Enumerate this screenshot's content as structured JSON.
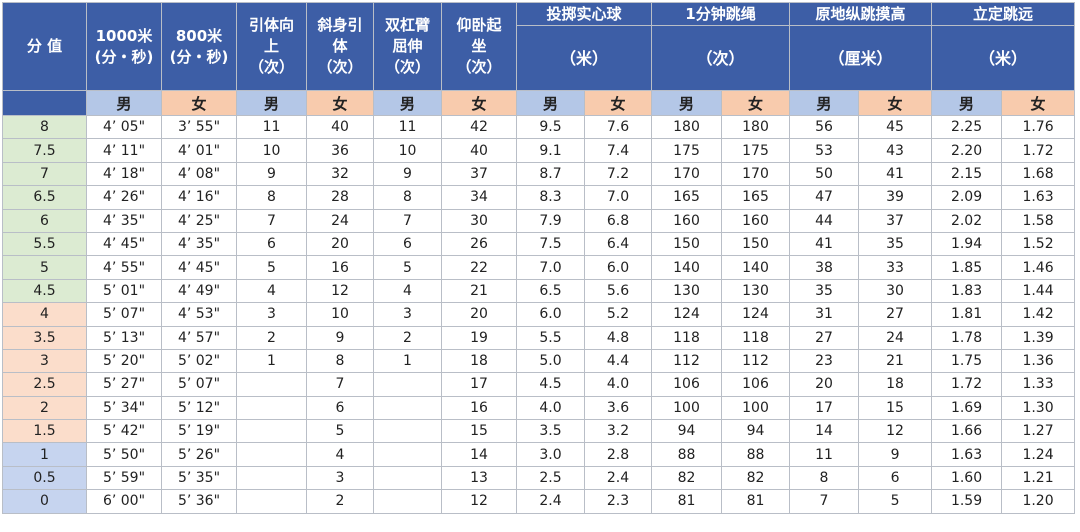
{
  "header": {
    "score": "分 值",
    "columns": [
      {
        "lines": [
          "1000米",
          "(分・秒)"
        ]
      },
      {
        "lines": [
          "800米",
          "(分・秒)"
        ]
      },
      {
        "lines": [
          "引体向",
          "上",
          "（次）"
        ]
      },
      {
        "lines": [
          "斜身引",
          "体",
          "（次）"
        ]
      },
      {
        "lines": [
          "双杠臂",
          "屈伸",
          "（次）"
        ]
      },
      {
        "lines": [
          "仰卧起",
          "坐",
          "（次）"
        ]
      }
    ],
    "groups": [
      {
        "title": "投掷实心球",
        "unit": "（米）"
      },
      {
        "title": "1分钟跳绳",
        "unit": "（次）"
      },
      {
        "title": "原地纵跳摸高",
        "unit": "（厘米）"
      },
      {
        "title": "立定跳远",
        "unit": "（米）"
      }
    ],
    "genders": [
      "男",
      "女",
      "男",
      "女",
      "男",
      "女",
      "男",
      "女",
      "男",
      "女",
      "男",
      "女",
      "男",
      "女"
    ]
  },
  "table": {
    "rows": [
      [
        "8",
        "4’ 05\"",
        "3’ 55\"",
        "11",
        "40",
        "11",
        "42",
        "9.5",
        "7.6",
        "180",
        "180",
        "56",
        "45",
        "2.25",
        "1.76"
      ],
      [
        "7.5",
        "4’ 11\"",
        "4’ 01\"",
        "10",
        "36",
        "10",
        "40",
        "9.1",
        "7.4",
        "175",
        "175",
        "53",
        "43",
        "2.20",
        "1.72"
      ],
      [
        "7",
        "4’ 18\"",
        "4’ 08\"",
        "9",
        "32",
        "9",
        "37",
        "8.7",
        "7.2",
        "170",
        "170",
        "50",
        "41",
        "2.15",
        "1.68"
      ],
      [
        "6.5",
        "4’ 26\"",
        "4’ 16\"",
        "8",
        "28",
        "8",
        "34",
        "8.3",
        "7.0",
        "165",
        "165",
        "47",
        "39",
        "2.09",
        "1.63"
      ],
      [
        "6",
        "4’ 35\"",
        "4’ 25\"",
        "7",
        "24",
        "7",
        "30",
        "7.9",
        "6.8",
        "160",
        "160",
        "44",
        "37",
        "2.02",
        "1.58"
      ],
      [
        "5.5",
        "4’ 45\"",
        "4’ 35\"",
        "6",
        "20",
        "6",
        "26",
        "7.5",
        "6.4",
        "150",
        "150",
        "41",
        "35",
        "1.94",
        "1.52"
      ],
      [
        "5",
        "4’ 55\"",
        "4’ 45\"",
        "5",
        "16",
        "5",
        "22",
        "7.0",
        "6.0",
        "140",
        "140",
        "38",
        "33",
        "1.85",
        "1.46"
      ],
      [
        "4.5",
        "5’ 01\"",
        "4’ 49\"",
        "4",
        "12",
        "4",
        "21",
        "6.5",
        "5.6",
        "130",
        "130",
        "35",
        "30",
        "1.83",
        "1.44"
      ],
      [
        "4",
        "5’ 07\"",
        "4’ 53\"",
        "3",
        "10",
        "3",
        "20",
        "6.0",
        "5.2",
        "124",
        "124",
        "31",
        "27",
        "1.81",
        "1.42"
      ],
      [
        "3.5",
        "5’ 13\"",
        "4’ 57\"",
        "2",
        "9",
        "2",
        "19",
        "5.5",
        "4.8",
        "118",
        "118",
        "27",
        "24",
        "1.78",
        "1.39"
      ],
      [
        "3",
        "5’ 20\"",
        "5’ 02\"",
        "1",
        "8",
        "1",
        "18",
        "5.0",
        "4.4",
        "112",
        "112",
        "23",
        "21",
        "1.75",
        "1.36"
      ],
      [
        "2.5",
        "5’ 27\"",
        "5’ 07\"",
        null,
        "7",
        null,
        "17",
        "4.5",
        "4.0",
        "106",
        "106",
        "20",
        "18",
        "1.72",
        "1.33"
      ],
      [
        "2",
        "5’ 34\"",
        "5’ 12\"",
        null,
        "6",
        null,
        "16",
        "4.0",
        "3.6",
        "100",
        "100",
        "17",
        "15",
        "1.69",
        "1.30"
      ],
      [
        "1.5",
        "5’ 42\"",
        "5’ 19\"",
        null,
        "5",
        null,
        "15",
        "3.5",
        "3.2",
        "94",
        "94",
        "14",
        "12",
        "1.66",
        "1.27"
      ],
      [
        "1",
        "5’ 50\"",
        "5’ 26\"",
        null,
        "4",
        null,
        "14",
        "3.0",
        "2.8",
        "88",
        "88",
        "11",
        "9",
        "1.63",
        "1.24"
      ],
      [
        "0.5",
        "5’ 59\"",
        "5’ 35\"",
        null,
        "3",
        null,
        "13",
        "2.5",
        "2.4",
        "82",
        "82",
        "8",
        "6",
        "1.60",
        "1.21"
      ],
      [
        "0",
        "6’ 00\"",
        "5’ 36\"",
        null,
        "2",
        null,
        "12",
        "2.4",
        "2.3",
        "81",
        "81",
        "7",
        "5",
        "1.59",
        "1.20"
      ]
    ]
  }
}
